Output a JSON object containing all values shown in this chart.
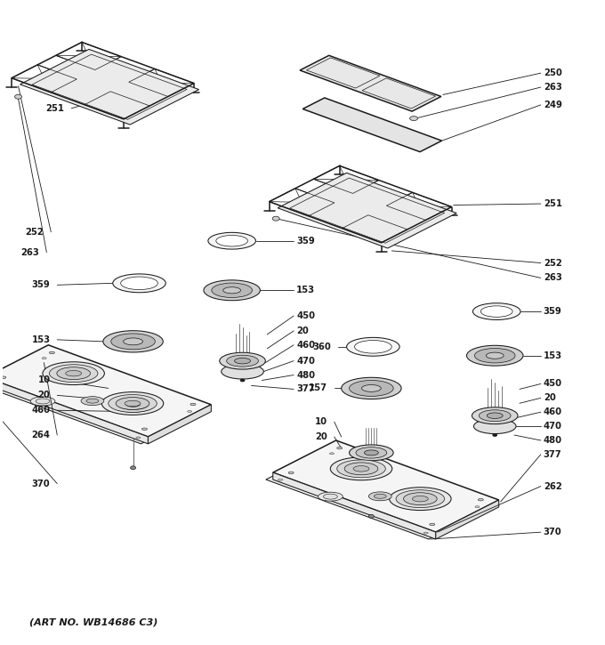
{
  "art_no": "(ART NO. WB14686 C3)",
  "bg": "#ffffff",
  "lc": "#1a1a1a",
  "fig_w": 6.8,
  "fig_h": 7.25,
  "dpi": 100,
  "fs": 7.2,
  "fs_art": 8.0,
  "lw": 0.75,
  "lw_thick": 1.1,
  "lw_thin": 0.5,
  "lw_leader": 0.6
}
